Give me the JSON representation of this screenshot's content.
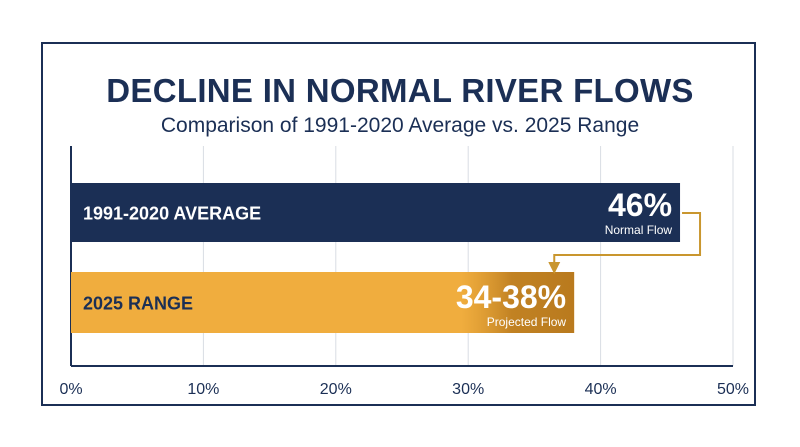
{
  "colors": {
    "navy": "#1b2f55",
    "gold": "#f0ad3e",
    "gold_dark": "#b97a1e",
    "arrow": "#c9962e",
    "grid": "#d9dde3"
  },
  "chart_data": {
    "type": "bar",
    "orientation": "horizontal",
    "title": "DECLINE IN NORMAL RIVER FLOWS",
    "subtitle": "Comparison of 1991-2020 Average vs. 2025 Range",
    "categories": [
      "1991-2020 AVERAGE",
      "2025 RANGE"
    ],
    "values": [
      46,
      38
    ],
    "range_low": [
      null,
      34
    ],
    "value_labels": [
      "46%",
      "34-38%"
    ],
    "value_sublabels": [
      "Normal Flow",
      "Projected Flow"
    ],
    "xlim": [
      0,
      50
    ],
    "xticks": [
      0,
      10,
      20,
      30,
      40,
      50
    ],
    "xtick_labels": [
      "0%",
      "10%",
      "20%",
      "30%",
      "40%",
      "50%"
    ],
    "grid": true,
    "annotations": [
      "arrow from 46% bar to 34-38% bar"
    ]
  }
}
